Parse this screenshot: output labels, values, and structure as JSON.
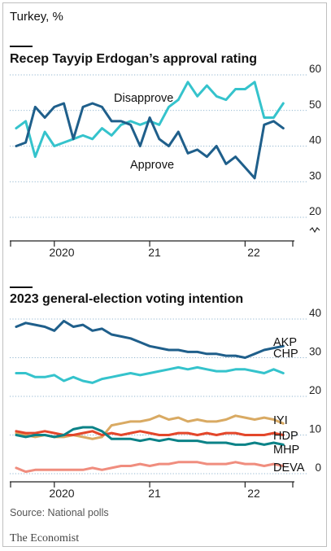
{
  "header": {
    "unit_label": "Turkey, %"
  },
  "footer": {
    "source": "Source: National polls",
    "brand": "The Economist"
  },
  "colors": {
    "dark_blue": "#1f5f8b",
    "light_blue": "#35c3cc",
    "gold": "#d9aa63",
    "red": "#e3472b",
    "teal": "#0b8287",
    "salmon": "#f08d7e",
    "grid": "#6f9fc0",
    "axis": "#222222"
  },
  "chart_data": [
    {
      "type": "line",
      "title": "Recep Tayyip Erdogan’s approval rating",
      "x_tick_labels": [
        "2020",
        "21",
        "22"
      ],
      "y_tick_labels": [
        "60",
        "50",
        "40",
        "30",
        "20"
      ],
      "ylim": [
        20,
        60
      ],
      "axis_break": true,
      "grid": true,
      "x": [
        2019.6,
        2019.7,
        2019.8,
        2019.9,
        2020.0,
        2020.1,
        2020.2,
        2020.3,
        2020.4,
        2020.5,
        2020.6,
        2020.7,
        2020.8,
        2020.9,
        2021.0,
        2021.1,
        2021.2,
        2021.3,
        2021.4,
        2021.5,
        2021.6,
        2021.7,
        2021.8,
        2021.9,
        2022.0,
        2022.1,
        2022.2,
        2022.3,
        2022.4
      ],
      "series": [
        {
          "name": "Disapprove",
          "color_key": "light_blue",
          "values": [
            45,
            47,
            37,
            44,
            40,
            41,
            42,
            43,
            42,
            45,
            43,
            46,
            47,
            46,
            47,
            46,
            51,
            53,
            58,
            54,
            57,
            54,
            53,
            56,
            56,
            58,
            48,
            48,
            52
          ]
        },
        {
          "name": "Approve",
          "color_key": "dark_blue",
          "values": [
            40,
            41,
            51,
            48,
            51,
            52,
            42,
            51,
            52,
            51,
            47,
            47,
            46,
            40,
            48,
            42,
            40,
            44,
            38,
            39,
            37,
            40,
            35,
            37,
            34,
            31,
            46,
            47,
            45
          ]
        }
      ]
    },
    {
      "type": "line",
      "title": "2023 general-election voting intention",
      "x_tick_labels": [
        "2020",
        "21",
        "22"
      ],
      "y_tick_labels": [
        "40",
        "30",
        "20",
        "10",
        "0"
      ],
      "ylim": [
        0,
        40
      ],
      "grid": true,
      "x": [
        2019.6,
        2019.7,
        2019.8,
        2019.9,
        2020.0,
        2020.1,
        2020.2,
        2020.3,
        2020.4,
        2020.5,
        2020.6,
        2020.7,
        2020.8,
        2020.9,
        2021.0,
        2021.1,
        2021.2,
        2021.3,
        2021.4,
        2021.5,
        2021.6,
        2021.7,
        2021.8,
        2021.9,
        2022.0,
        2022.1,
        2022.2,
        2022.3,
        2022.4
      ],
      "series": [
        {
          "name": "AKP",
          "color_key": "dark_blue",
          "values": [
            38,
            39,
            38.5,
            38,
            37,
            39.5,
            38,
            38.5,
            37,
            37.5,
            36,
            35.5,
            35,
            34,
            33,
            32.5,
            32,
            32,
            31.5,
            31.5,
            31,
            31,
            30.5,
            30.5,
            30,
            31,
            32,
            32.5,
            33
          ]
        },
        {
          "name": "CHP",
          "color_key": "light_blue",
          "values": [
            26,
            26,
            25,
            25,
            25.5,
            24,
            25,
            24,
            23.5,
            24.5,
            25,
            25.5,
            26,
            25.5,
            26,
            26.5,
            27,
            27.5,
            27,
            27.5,
            27,
            26.5,
            26.5,
            27,
            27,
            26.5,
            26,
            27,
            26
          ]
        },
        {
          "name": "IYI",
          "color_key": "gold",
          "values": [
            10.5,
            10,
            9.5,
            10,
            9.5,
            9.5,
            10,
            9.5,
            9,
            9.5,
            12.5,
            13,
            13.5,
            13.5,
            14,
            15,
            14,
            14.5,
            13.5,
            14,
            13.5,
            13.5,
            14,
            15,
            14.5,
            14,
            14.5,
            14,
            13
          ]
        },
        {
          "name": "HDP",
          "color_key": "red",
          "values": [
            11,
            10.5,
            10.5,
            11,
            10.5,
            10,
            10,
            10.5,
            11,
            10,
            10.5,
            10,
            10.5,
            11,
            10.5,
            10,
            10,
            10.5,
            10.5,
            10,
            10.5,
            10,
            10.5,
            10.5,
            10,
            10,
            10,
            10.5,
            10
          ]
        },
        {
          "name": "MHP",
          "color_key": "teal",
          "values": [
            10,
            9.5,
            10,
            10,
            9.5,
            10,
            11.5,
            12,
            12,
            11,
            9,
            9,
            9,
            8.5,
            9,
            8.5,
            9,
            8.5,
            8.5,
            8.5,
            8,
            8,
            8,
            7.5,
            7.5,
            8,
            7.5,
            8,
            7.5
          ]
        },
        {
          "name": "DEVA",
          "color_key": "salmon",
          "values": [
            1.5,
            0.5,
            1,
            1,
            1,
            1,
            1,
            1,
            1.5,
            1,
            1.5,
            2,
            2,
            2.5,
            2,
            2.5,
            2.5,
            3,
            3,
            3,
            2.5,
            2.5,
            2.5,
            3,
            2.5,
            2.5,
            2,
            2.5,
            2
          ]
        }
      ]
    }
  ]
}
